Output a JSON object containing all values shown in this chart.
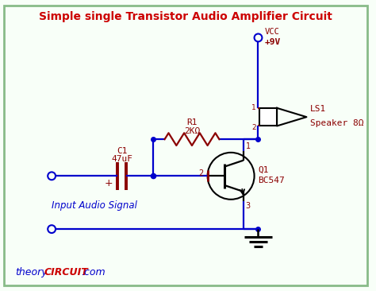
{
  "title": "Simple single Transistor Audio Amplifier Circuit",
  "title_color": "#cc0000",
  "bg_color": "#f8fff8",
  "border_color": "#88bb88",
  "wire_color": "#0000cc",
  "component_color": "#8b0000",
  "label_color": "#8b0000",
  "blue_label_color": "#0000cc",
  "ground_color": "#000000",
  "r1_label": "R1",
  "r1_value": "2KΩ",
  "c1_label": "C1",
  "c1_value": "47uF",
  "q1_label": "Q1",
  "q1_value": "BC547",
  "ls1_label": "LS1",
  "ls1_value": "Speaker 8Ω",
  "vcc_label": "VCC",
  "vcc_voltage": "+9V",
  "input_label": "Input Audio Signal",
  "footer_theory": "theory",
  "footer_circuit": "CIRCUIT",
  "footer_rest": ".com"
}
